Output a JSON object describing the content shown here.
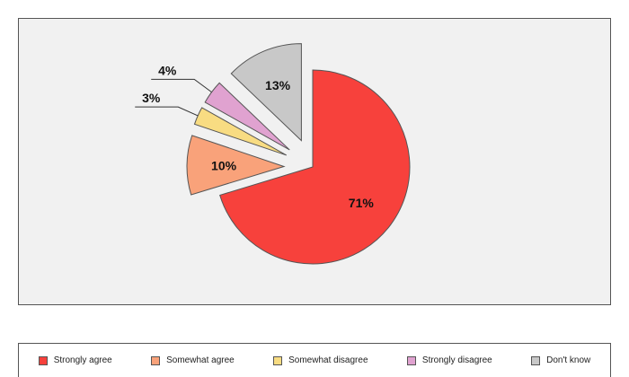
{
  "chart_data": {
    "type": "pie",
    "title": "",
    "slices": [
      {
        "label": "Strongly agree",
        "value": 71,
        "display": "71%",
        "color": "#f7413c"
      },
      {
        "label": "Somewhat agree",
        "value": 10,
        "display": "10%",
        "color": "#f9a27a"
      },
      {
        "label": "Somewhat disagree",
        "value": 3,
        "display": "3%",
        "color": "#f8dc82"
      },
      {
        "label": "Strongly disagree",
        "value": 4,
        "display": "4%",
        "color": "#e0a2d0"
      },
      {
        "label": "Don't know",
        "value": 13,
        "display": "13%",
        "color": "#c8c8c8"
      }
    ],
    "exploded": true,
    "legend_position": "bottom"
  }
}
